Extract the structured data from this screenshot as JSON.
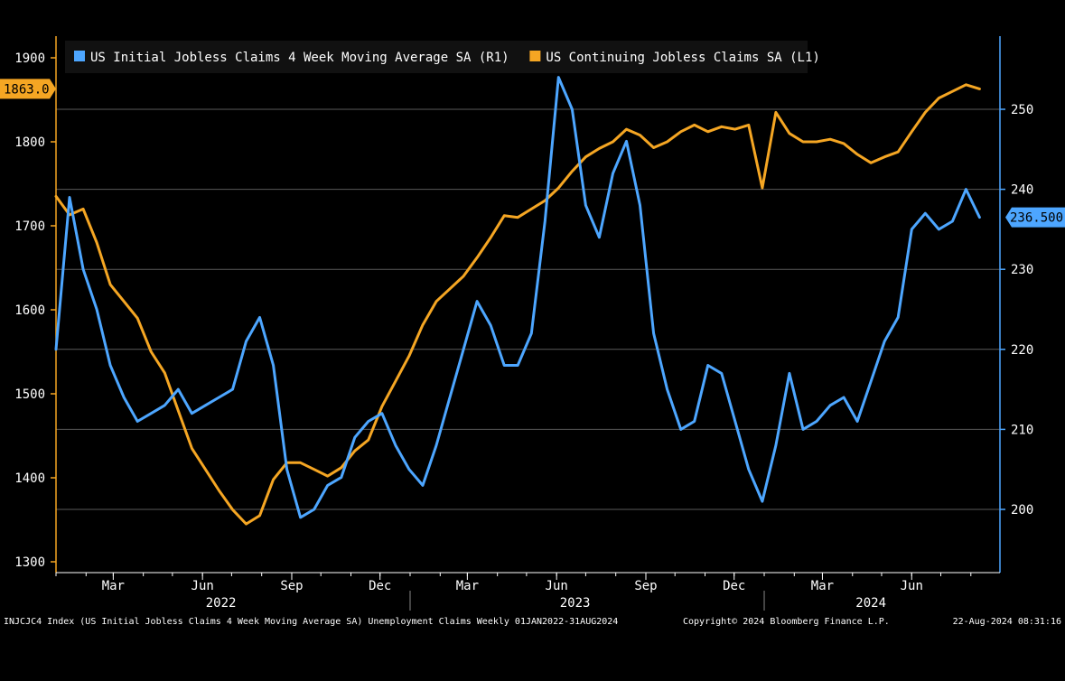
{
  "chart_data": {
    "type": "line",
    "legend": {
      "placement": "top-left",
      "items": [
        {
          "label": "US Initial Jobless Claims 4 Week Moving Average SA  (R1)",
          "color": "#4da6ff"
        },
        {
          "label": "US Continuing Jobless Claims SA  (L1)",
          "color": "#f5a623"
        }
      ]
    },
    "left_axis": {
      "ticks": [
        "1300",
        "1400",
        "1500",
        "1600",
        "1700",
        "1800",
        "1900"
      ],
      "range": [
        1290,
        1930
      ]
    },
    "right_axis": {
      "ticks": [
        "200",
        "210",
        "220",
        "230",
        "240",
        "250"
      ],
      "range": [
        192,
        260
      ]
    },
    "x_axis": {
      "month_ticks": [
        {
          "label": "Mar",
          "date": "2022-03-01"
        },
        {
          "label": "Jun",
          "date": "2022-06-01"
        },
        {
          "label": "Sep",
          "date": "2022-09-01"
        },
        {
          "label": "Dec",
          "date": "2022-12-01"
        },
        {
          "label": "Mar",
          "date": "2023-03-01"
        },
        {
          "label": "Jun",
          "date": "2023-06-01"
        },
        {
          "label": "Sep",
          "date": "2023-09-01"
        },
        {
          "label": "Dec",
          "date": "2023-12-01"
        },
        {
          "label": "Mar",
          "date": "2024-03-01"
        },
        {
          "label": "Jun",
          "date": "2024-06-01"
        }
      ],
      "year_labels": [
        {
          "label": "2022",
          "date": "2022-06-20"
        },
        {
          "label": "2023",
          "date": "2023-06-20"
        },
        {
          "label": "2024",
          "date": "2024-04-20"
        }
      ],
      "year_dividers": [
        "2023-01-01",
        "2024-01-01"
      ],
      "range": [
        "2022-01-01",
        "2024-08-31"
      ]
    },
    "grid": true,
    "last_values": {
      "continuing": "1863.0",
      "initial": "236.500"
    },
    "series": [
      {
        "name": "US Continuing Jobless Claims SA  (L1)",
        "axis": "left",
        "color": "#f5a623",
        "points": [
          [
            "2022-01-01",
            1735
          ],
          [
            "2022-01-15",
            1713
          ],
          [
            "2022-01-29",
            1720
          ],
          [
            "2022-02-12",
            1680
          ],
          [
            "2022-02-26",
            1630
          ],
          [
            "2022-03-12",
            1610
          ],
          [
            "2022-03-26",
            1590
          ],
          [
            "2022-04-09",
            1550
          ],
          [
            "2022-04-23",
            1525
          ],
          [
            "2022-05-07",
            1480
          ],
          [
            "2022-05-21",
            1435
          ],
          [
            "2022-06-04",
            1410
          ],
          [
            "2022-06-18",
            1385
          ],
          [
            "2022-07-02",
            1362
          ],
          [
            "2022-07-16",
            1345
          ],
          [
            "2022-07-30",
            1355
          ],
          [
            "2022-08-13",
            1398
          ],
          [
            "2022-08-27",
            1418
          ],
          [
            "2022-09-10",
            1418
          ],
          [
            "2022-09-24",
            1410
          ],
          [
            "2022-10-08",
            1402
          ],
          [
            "2022-10-22",
            1412
          ],
          [
            "2022-11-05",
            1432
          ],
          [
            "2022-11-19",
            1445
          ],
          [
            "2022-12-03",
            1485
          ],
          [
            "2022-12-17",
            1515
          ],
          [
            "2022-12-31",
            1545
          ],
          [
            "2023-01-14",
            1582
          ],
          [
            "2023-01-28",
            1610
          ],
          [
            "2023-02-11",
            1625
          ],
          [
            "2023-02-25",
            1640
          ],
          [
            "2023-03-11",
            1662
          ],
          [
            "2023-03-25",
            1686
          ],
          [
            "2023-04-08",
            1712
          ],
          [
            "2023-04-22",
            1710
          ],
          [
            "2023-05-06",
            1720
          ],
          [
            "2023-05-20",
            1730
          ],
          [
            "2023-06-03",
            1745
          ],
          [
            "2023-06-17",
            1765
          ],
          [
            "2023-07-01",
            1782
          ],
          [
            "2023-07-15",
            1792
          ],
          [
            "2023-07-29",
            1800
          ],
          [
            "2023-08-12",
            1815
          ],
          [
            "2023-08-26",
            1808
          ],
          [
            "2023-09-09",
            1793
          ],
          [
            "2023-09-23",
            1800
          ],
          [
            "2023-10-07",
            1812
          ],
          [
            "2023-10-21",
            1820
          ],
          [
            "2023-11-04",
            1812
          ],
          [
            "2023-11-18",
            1818
          ],
          [
            "2023-12-02",
            1815
          ],
          [
            "2023-12-16",
            1820
          ],
          [
            "2023-12-30",
            1745
          ],
          [
            "2024-01-13",
            1835
          ],
          [
            "2024-01-27",
            1810
          ],
          [
            "2024-02-10",
            1800
          ],
          [
            "2024-02-24",
            1800
          ],
          [
            "2024-03-09",
            1803
          ],
          [
            "2024-03-23",
            1798
          ],
          [
            "2024-04-06",
            1785
          ],
          [
            "2024-04-20",
            1775
          ],
          [
            "2024-05-04",
            1782
          ],
          [
            "2024-05-18",
            1788
          ],
          [
            "2024-06-01",
            1812
          ],
          [
            "2024-06-15",
            1835
          ],
          [
            "2024-06-29",
            1852
          ],
          [
            "2024-07-13",
            1860
          ],
          [
            "2024-07-27",
            1868
          ],
          [
            "2024-08-10",
            1863
          ]
        ]
      },
      {
        "name": "US Initial Jobless Claims 4 Week Moving Average SA  (R1)",
        "axis": "right",
        "color": "#4da6ff",
        "points": [
          [
            "2022-01-01",
            220
          ],
          [
            "2022-01-15",
            239
          ],
          [
            "2022-01-29",
            230
          ],
          [
            "2022-02-12",
            225
          ],
          [
            "2022-02-26",
            218
          ],
          [
            "2022-03-12",
            214
          ],
          [
            "2022-03-26",
            211
          ],
          [
            "2022-04-09",
            212
          ],
          [
            "2022-04-23",
            213
          ],
          [
            "2022-05-07",
            215
          ],
          [
            "2022-05-21",
            212
          ],
          [
            "2022-06-04",
            213
          ],
          [
            "2022-06-18",
            214
          ],
          [
            "2022-07-02",
            215
          ],
          [
            "2022-07-16",
            221
          ],
          [
            "2022-07-30",
            224
          ],
          [
            "2022-08-13",
            218
          ],
          [
            "2022-08-27",
            205
          ],
          [
            "2022-09-10",
            199
          ],
          [
            "2022-09-24",
            200
          ],
          [
            "2022-10-08",
            203
          ],
          [
            "2022-10-22",
            204
          ],
          [
            "2022-11-05",
            209
          ],
          [
            "2022-11-19",
            211
          ],
          [
            "2022-12-03",
            212
          ],
          [
            "2022-12-17",
            208
          ],
          [
            "2022-12-31",
            205
          ],
          [
            "2023-01-14",
            203
          ],
          [
            "2023-01-28",
            208
          ],
          [
            "2023-02-11",
            214
          ],
          [
            "2023-02-25",
            220
          ],
          [
            "2023-03-11",
            226
          ],
          [
            "2023-03-25",
            223
          ],
          [
            "2023-04-08",
            218
          ],
          [
            "2023-04-22",
            218
          ],
          [
            "2023-05-06",
            222
          ],
          [
            "2023-05-20",
            236
          ],
          [
            "2023-06-03",
            254
          ],
          [
            "2023-06-17",
            250
          ],
          [
            "2023-07-01",
            238
          ],
          [
            "2023-07-15",
            234
          ],
          [
            "2023-07-29",
            242
          ],
          [
            "2023-08-12",
            246
          ],
          [
            "2023-08-26",
            238
          ],
          [
            "2023-09-09",
            222
          ],
          [
            "2023-09-23",
            215
          ],
          [
            "2023-10-07",
            210
          ],
          [
            "2023-10-21",
            211
          ],
          [
            "2023-11-04",
            218
          ],
          [
            "2023-11-18",
            217
          ],
          [
            "2023-12-02",
            211
          ],
          [
            "2023-12-16",
            205
          ],
          [
            "2023-12-30",
            201
          ],
          [
            "2024-01-13",
            208
          ],
          [
            "2024-01-27",
            217
          ],
          [
            "2024-02-10",
            210
          ],
          [
            "2024-02-24",
            211
          ],
          [
            "2024-03-09",
            213
          ],
          [
            "2024-03-23",
            214
          ],
          [
            "2024-04-06",
            211
          ],
          [
            "2024-04-20",
            216
          ],
          [
            "2024-05-04",
            221
          ],
          [
            "2024-05-18",
            224
          ],
          [
            "2024-06-01",
            235
          ],
          [
            "2024-06-15",
            237
          ],
          [
            "2024-06-29",
            235
          ],
          [
            "2024-07-13",
            236
          ],
          [
            "2024-07-27",
            240
          ],
          [
            "2024-08-10",
            236.5
          ]
        ]
      }
    ]
  },
  "footer": {
    "source": "INJCJC4 Index (US Initial Jobless Claims 4 Week Moving Average SA) Unemployment Claims  Weekly 01JAN2022-31AUG2024",
    "copyright": "Copyright© 2024 Bloomberg Finance L.P.",
    "timestamp": "22-Aug-2024 08:31:16"
  }
}
